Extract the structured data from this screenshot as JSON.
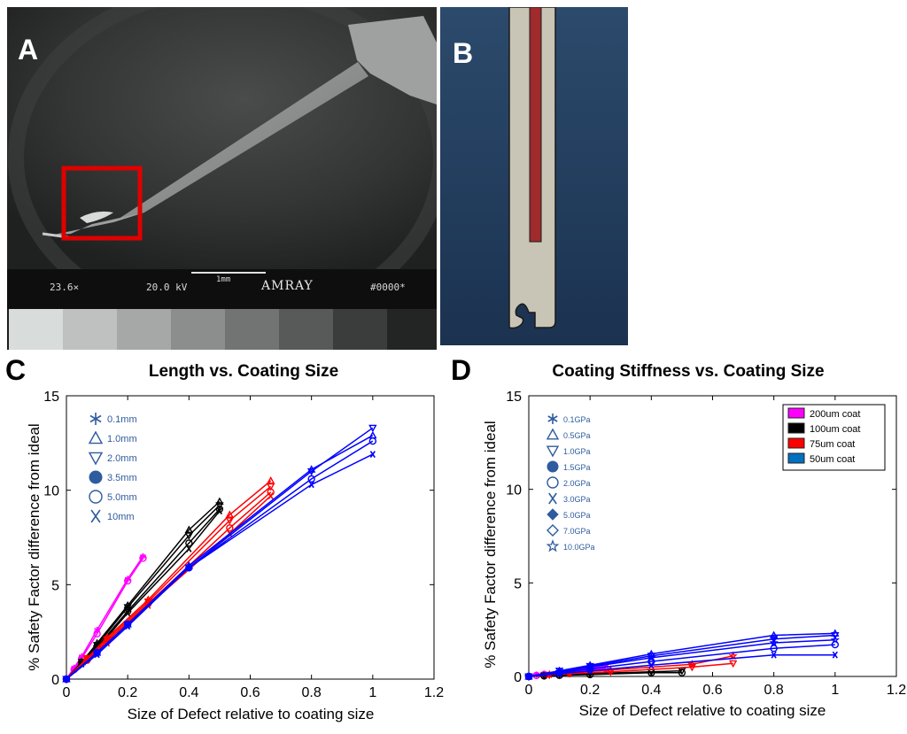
{
  "panels": {
    "a": {
      "letter": "A",
      "magnification": "23.6×",
      "voltage": "20.0 kV",
      "scale_label": "1mm",
      "brand": "AMRAY",
      "image_id": "#0000*",
      "highlight_color": "#e00000",
      "grayscale": [
        "#d8dcda",
        "#bfc1c0",
        "#a6a8a7",
        "#8c8e8d",
        "#727473",
        "#585a59",
        "#3b3d3c",
        "#232524"
      ]
    },
    "b": {
      "letter": "B",
      "colors": {
        "background_top": "#2c4a6c",
        "background_bottom": "#1b3250",
        "body": "#c8c5b6",
        "core": "#a02a2c"
      }
    },
    "c": {
      "letter": "C"
    },
    "d": {
      "letter": "D"
    }
  },
  "chart_data": [
    {
      "type": "line",
      "title": "Length vs. Coating Size",
      "xlabel": "Size of Defect relative to coating size",
      "ylabel": "% Safety Factor difference from ideal",
      "xlim": [
        0,
        1.2
      ],
      "ylim": [
        0,
        15
      ],
      "xticks": [
        "0",
        "0.2",
        "0.4",
        "0.6",
        "0.8",
        "1",
        "1.2"
      ],
      "yticks": [
        "0",
        "5",
        "10",
        "15"
      ],
      "grid": false,
      "marker_legend": {
        "placement": "top-left",
        "entries": [
          {
            "label": "0.1mm",
            "marker": "asterisk"
          },
          {
            "label": "1.0mm",
            "marker": "triangle-up"
          },
          {
            "label": "2.0mm",
            "marker": "triangle-down"
          },
          {
            "label": "3.5mm",
            "marker": "filled-circle"
          },
          {
            "label": "5.0mm",
            "marker": "circle"
          },
          {
            "label": "10mm",
            "marker": "x"
          }
        ]
      },
      "series": [
        {
          "color": "#ff00ff",
          "marker": "asterisk",
          "x": [
            0,
            0.025,
            0.05,
            0.1,
            0.2,
            0.25
          ],
          "y": [
            0,
            0.6,
            1.2,
            2.6,
            5.3,
            6.5
          ]
        },
        {
          "color": "#ff00ff",
          "marker": "circle",
          "x": [
            0,
            0.025,
            0.05,
            0.1,
            0.2,
            0.25
          ],
          "y": [
            0,
            0.5,
            1.1,
            2.4,
            5.2,
            6.4
          ]
        },
        {
          "color": "#000000",
          "marker": "triangle-up",
          "x": [
            0,
            0.05,
            0.1,
            0.2,
            0.4,
            0.5
          ],
          "y": [
            0,
            0.9,
            1.9,
            3.9,
            7.9,
            9.4
          ]
        },
        {
          "color": "#000000",
          "marker": "triangle-down",
          "x": [
            0,
            0.05,
            0.1,
            0.2,
            0.4,
            0.5
          ],
          "y": [
            0,
            0.9,
            1.8,
            3.8,
            7.6,
            9.2
          ]
        },
        {
          "color": "#000000",
          "marker": "circle",
          "x": [
            0,
            0.05,
            0.1,
            0.2,
            0.4,
            0.5
          ],
          "y": [
            0,
            0.9,
            1.7,
            3.6,
            7.2,
            9.0
          ]
        },
        {
          "color": "#000000",
          "marker": "x",
          "x": [
            0,
            0.05,
            0.1,
            0.2,
            0.4,
            0.5
          ],
          "y": [
            0,
            0.8,
            1.6,
            3.5,
            6.9,
            8.9
          ]
        },
        {
          "color": "#ff0000",
          "marker": "triangle-up",
          "x": [
            0,
            0.067,
            0.133,
            0.267,
            0.533,
            0.667
          ],
          "y": [
            0,
            1.1,
            2.2,
            4.2,
            8.7,
            10.5
          ]
        },
        {
          "color": "#ff0000",
          "marker": "triangle-down",
          "x": [
            0,
            0.067,
            0.133,
            0.267,
            0.533,
            0.667
          ],
          "y": [
            0,
            1.1,
            2.1,
            4.1,
            8.4,
            10.2
          ]
        },
        {
          "color": "#ff0000",
          "marker": "circle",
          "x": [
            0,
            0.067,
            0.133,
            0.267,
            0.533,
            0.667
          ],
          "y": [
            0,
            1.0,
            2.0,
            4.0,
            8.0,
            9.9
          ]
        },
        {
          "color": "#ff0000",
          "marker": "x",
          "x": [
            0,
            0.067,
            0.133,
            0.267,
            0.533,
            0.667
          ],
          "y": [
            0,
            1.0,
            1.9,
            3.9,
            7.7,
            9.7
          ]
        },
        {
          "color": "#0000ff",
          "marker": "triangle-down",
          "x": [
            0,
            0.1,
            0.2,
            0.4,
            0.8,
            1.0
          ],
          "y": [
            0,
            1.4,
            2.9,
            5.9,
            11.0,
            13.3
          ]
        },
        {
          "color": "#0000ff",
          "marker": "triangle-up",
          "x": [
            0,
            0.1,
            0.2,
            0.4,
            0.8,
            1.0
          ],
          "y": [
            0,
            1.4,
            2.9,
            6.0,
            11.1,
            12.9
          ]
        },
        {
          "color": "#0000ff",
          "marker": "circle",
          "x": [
            0,
            0.1,
            0.2,
            0.4,
            0.8,
            1.0
          ],
          "y": [
            0,
            1.4,
            2.9,
            5.9,
            10.6,
            12.6
          ]
        },
        {
          "color": "#0000ff",
          "marker": "x",
          "x": [
            0,
            0.1,
            0.2,
            0.4,
            0.8,
            1.0
          ],
          "y": [
            0,
            1.3,
            2.8,
            5.9,
            10.3,
            11.9
          ]
        }
      ]
    },
    {
      "type": "line",
      "title": "Coating Stiffness vs. Coating Size",
      "xlabel": "Size of Defect relative to coating size",
      "ylabel": "% Safety Factor difference from ideal",
      "xlim": [
        0,
        1.2
      ],
      "ylim": [
        0,
        15
      ],
      "xticks": [
        "0",
        "0.2",
        "0.4",
        "0.6",
        "0.8",
        "1",
        "1.2"
      ],
      "yticks": [
        "0",
        "5",
        "10",
        "15"
      ],
      "grid": false,
      "marker_legend": {
        "placement": "top-left",
        "entries": [
          {
            "label": "0.1GPa",
            "marker": "asterisk"
          },
          {
            "label": "0.5GPa",
            "marker": "triangle-up"
          },
          {
            "label": "1.0GPa",
            "marker": "triangle-down"
          },
          {
            "label": "1.5GPa",
            "marker": "filled-circle"
          },
          {
            "label": "2.0GPa",
            "marker": "circle"
          },
          {
            "label": "3.0GPa",
            "marker": "x"
          },
          {
            "label": "5.0GPa",
            "marker": "filled-diamond"
          },
          {
            "label": "7.0GPa",
            "marker": "diamond"
          },
          {
            "label": "10.0GPa",
            "marker": "star"
          }
        ]
      },
      "color_legend": {
        "placement": "top-right",
        "entries": [
          {
            "label": "200um coat",
            "color": "#ff00ff"
          },
          {
            "label": "100um coat",
            "color": "#000000"
          },
          {
            "label": "75um coat",
            "color": "#ff0000"
          },
          {
            "label": "50um coat",
            "color": "#0070c0"
          }
        ]
      },
      "series": [
        {
          "color": "#ff00ff",
          "marker": "asterisk",
          "x": [
            0,
            0.025,
            0.05,
            0.1,
            0.2,
            0.25
          ],
          "y": [
            0,
            0.1,
            0.15,
            0.25,
            0.45,
            0.55
          ]
        },
        {
          "color": "#ff00ff",
          "marker": "circle",
          "x": [
            0,
            0.025,
            0.05,
            0.1,
            0.2,
            0.25
          ],
          "y": [
            0,
            0.05,
            0.1,
            0.2,
            0.35,
            0.45
          ]
        },
        {
          "color": "#000000",
          "marker": "triangle-down",
          "x": [
            0,
            0.05,
            0.1,
            0.2,
            0.4,
            0.5
          ],
          "y": [
            0,
            0.05,
            0.1,
            0.15,
            0.25,
            0.3
          ]
        },
        {
          "color": "#000000",
          "marker": "circle",
          "x": [
            0,
            0.05,
            0.1,
            0.2,
            0.4,
            0.5
          ],
          "y": [
            0,
            0.03,
            0.06,
            0.1,
            0.2,
            0.2
          ]
        },
        {
          "color": "#ff0000",
          "marker": "star",
          "x": [
            0,
            0.067,
            0.133,
            0.267,
            0.533,
            0.667
          ],
          "y": [
            0,
            0.1,
            0.2,
            0.35,
            0.65,
            1.1
          ]
        },
        {
          "color": "#ff0000",
          "marker": "triangle-down",
          "x": [
            0,
            0.067,
            0.133,
            0.267,
            0.533,
            0.667
          ],
          "y": [
            0,
            0.08,
            0.15,
            0.25,
            0.5,
            0.7
          ]
        },
        {
          "color": "#0000ff",
          "marker": "triangle-up",
          "x": [
            0,
            0.1,
            0.2,
            0.4,
            0.8,
            1.0
          ],
          "y": [
            0,
            0.3,
            0.6,
            1.2,
            2.2,
            2.3
          ]
        },
        {
          "color": "#0000ff",
          "marker": "triangle-down",
          "x": [
            0,
            0.1,
            0.2,
            0.4,
            0.8,
            1.0
          ],
          "y": [
            0,
            0.3,
            0.55,
            1.1,
            2.0,
            2.2
          ]
        },
        {
          "color": "#0000ff",
          "marker": "star",
          "x": [
            0,
            0.1,
            0.2,
            0.4,
            0.8,
            1.0
          ],
          "y": [
            0,
            0.25,
            0.5,
            1.0,
            1.8,
            1.95
          ]
        },
        {
          "color": "#0000ff",
          "marker": "circle",
          "x": [
            0,
            0.1,
            0.2,
            0.4,
            0.8,
            1.0
          ],
          "y": [
            0,
            0.2,
            0.4,
            0.8,
            1.5,
            1.7
          ]
        },
        {
          "color": "#0000ff",
          "marker": "x",
          "x": [
            0,
            0.1,
            0.2,
            0.4,
            0.8,
            1.0
          ],
          "y": [
            0,
            0.15,
            0.3,
            0.6,
            1.15,
            1.15
          ]
        }
      ]
    }
  ]
}
